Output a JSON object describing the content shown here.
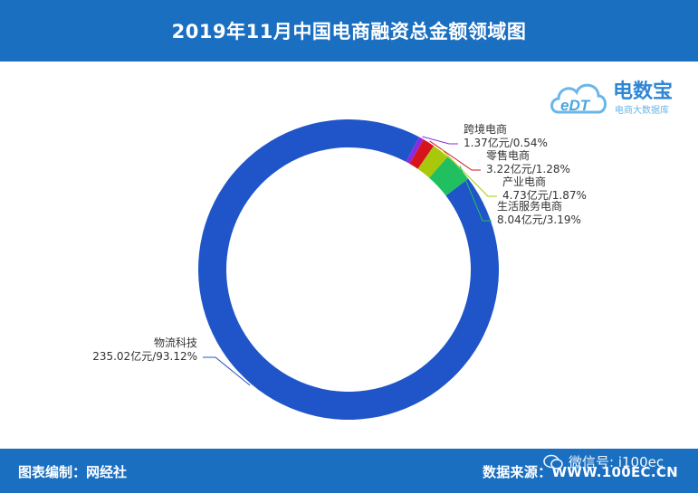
{
  "title": "2019年11月中国电商融资总金额领域图",
  "logo": {
    "text": "电数宝",
    "subtext": "电商大数据库",
    "badge": "eDT"
  },
  "footer": {
    "credit_label": "图表编制：",
    "credit_value": "网经社",
    "source_label": "数据来源：",
    "source_value": "WWW.100EC.CN"
  },
  "watermark": {
    "text": "微信号: i100ec",
    "icon": "wechat-icon"
  },
  "chart_data": {
    "type": "pie",
    "donut": true,
    "categories": [
      "物流科技",
      "跨境电商",
      "零售电商",
      "产业电商",
      "生活服务电商"
    ],
    "values": [
      235.02,
      1.37,
      3.22,
      4.73,
      8.04
    ],
    "unit": "亿元",
    "percents": [
      "93.12%",
      "0.54%",
      "1.28%",
      "1.87%",
      "3.19%"
    ],
    "value_labels": [
      "235.02亿元/93.12%",
      "1.37亿元/0.54%",
      "3.22亿元/1.28%",
      "4.73亿元/1.87%",
      "8.04亿元/3.19%"
    ],
    "colors": [
      "#1f55c8",
      "#8a2be2",
      "#d7141c",
      "#a9c80c",
      "#20c060"
    ],
    "legend": "none"
  }
}
